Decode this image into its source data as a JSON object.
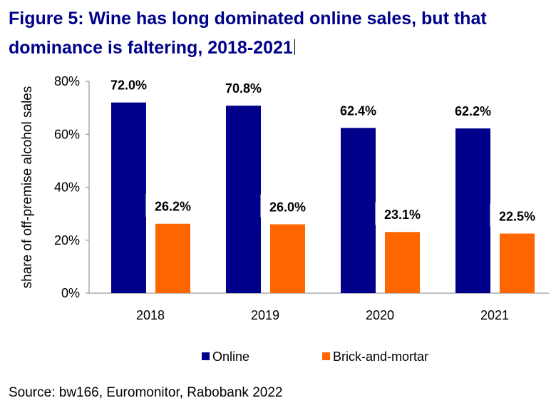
{
  "figure": {
    "title_line1": "Figure 5: Wine has long dominated online sales, but that",
    "title_line2": "dominance is faltering, 2018-2021",
    "source": "Source: bw166, Euromonitor, Rabobank 2022"
  },
  "chart_data": {
    "type": "bar",
    "categories": [
      "2018",
      "2019",
      "2020",
      "2021"
    ],
    "series": [
      {
        "name": "Online",
        "values": [
          72.0,
          70.8,
          62.4,
          62.2
        ],
        "color": "#00008b"
      },
      {
        "name": "Brick-and-mortar",
        "values": [
          26.2,
          26.0,
          23.1,
          22.5
        ],
        "color": "#ff6600"
      }
    ],
    "data_labels": [
      [
        "72.0%",
        "70.8%",
        "62.4%",
        "62.2%"
      ],
      [
        "26.2%",
        "26.0%",
        "23.1%",
        "22.5%"
      ]
    ],
    "ylabel": "share of off-premise alcohol sales",
    "ylim": [
      0,
      80
    ],
    "yticks": [
      0,
      20,
      40,
      60,
      80
    ],
    "ytick_labels": [
      "0%",
      "20%",
      "40%",
      "60%",
      "80%"
    ],
    "grid": false,
    "legend_position": "bottom"
  }
}
